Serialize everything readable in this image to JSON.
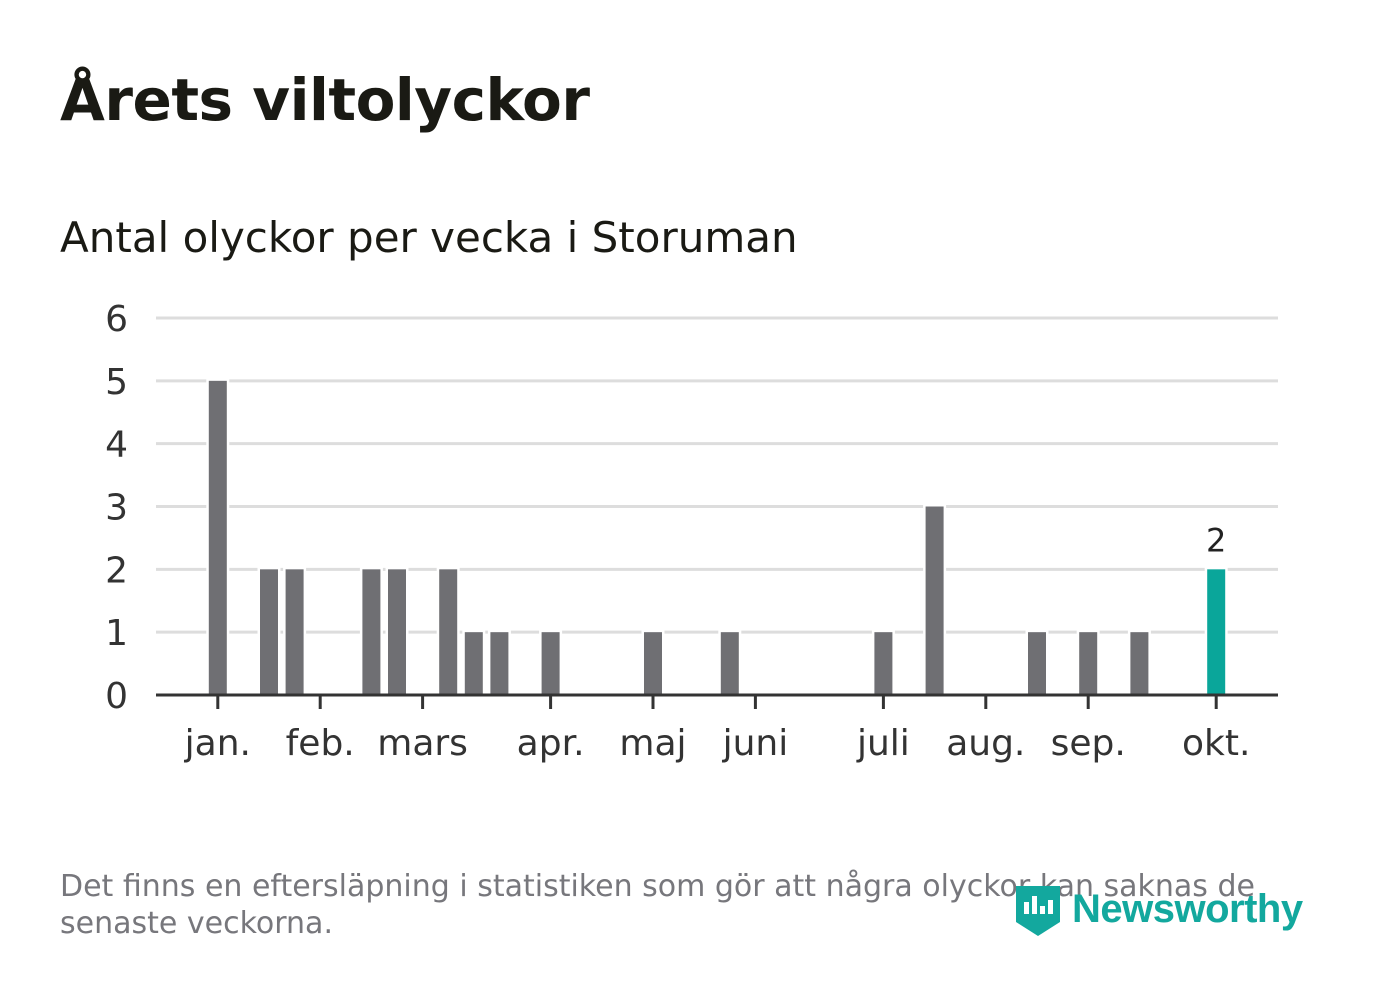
{
  "title": "Årets viltolyckor",
  "subtitle": "Antal olyckor per vecka i Storuman",
  "footnote": "Det finns en eftersläpning i statistiken som gör att några olyckor kan saknas de senaste veckorna.",
  "logo": {
    "text": "Newsworthy",
    "icon": "newsworthy-logo-icon",
    "color": "#13a89e"
  },
  "colors": {
    "bar": "#6f6f73",
    "highlight": "#0aa69a",
    "grid": "#dddddd",
    "axis": "#333333",
    "text": "#333333"
  },
  "chart_data": {
    "type": "bar",
    "title": "Antal olyckor per vecka i Storuman",
    "xlabel": "",
    "ylabel": "",
    "ylim": [
      0,
      6
    ],
    "yticks": [
      0,
      1,
      2,
      3,
      4,
      5,
      6
    ],
    "grid": true,
    "weeks": [
      1,
      2,
      3,
      4,
      5,
      6,
      7,
      8,
      9,
      10,
      11,
      12,
      13,
      14,
      15,
      16,
      17,
      18,
      19,
      20,
      21,
      22,
      23,
      24,
      25,
      26,
      27,
      28,
      29,
      30,
      31,
      32,
      33,
      34,
      35,
      36,
      37,
      38,
      39,
      40,
      41,
      42,
      43,
      44
    ],
    "values": [
      0,
      0,
      0,
      5,
      0,
      2,
      2,
      0,
      0,
      2,
      2,
      0,
      2,
      1,
      1,
      0,
      1,
      0,
      0,
      0,
      1,
      0,
      0,
      1,
      0,
      0,
      0,
      0,
      0,
      1,
      0,
      3,
      0,
      0,
      0,
      1,
      0,
      1,
      0,
      1,
      0,
      0,
      2,
      0
    ],
    "highlight_week": 43,
    "highlight_label": "2",
    "month_ticks": [
      {
        "label": "jan.",
        "week": 4
      },
      {
        "label": "feb.",
        "week": 8
      },
      {
        "label": "mars",
        "week": 12
      },
      {
        "label": "apr.",
        "week": 17
      },
      {
        "label": "maj",
        "week": 21
      },
      {
        "label": "juni",
        "week": 25
      },
      {
        "label": "juli",
        "week": 30
      },
      {
        "label": "aug.",
        "week": 34
      },
      {
        "label": "sep.",
        "week": 38
      },
      {
        "label": "okt.",
        "week": 43
      }
    ]
  }
}
